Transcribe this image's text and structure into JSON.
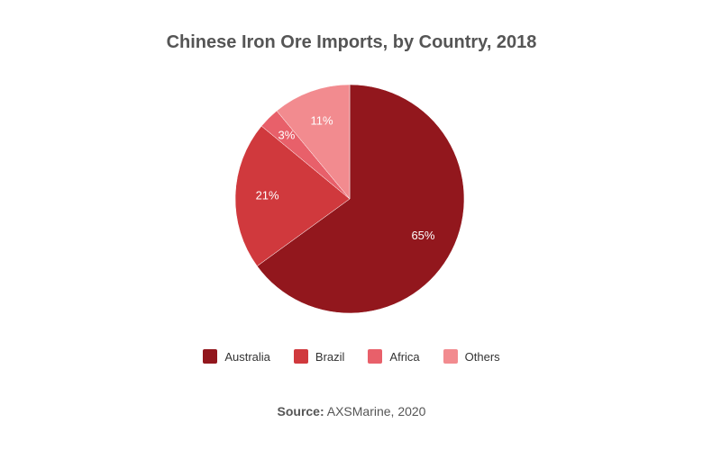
{
  "chart_data": {
    "type": "pie",
    "title": "Chinese Iron Ore Imports, by Country, 2018",
    "legend_position": "bottom",
    "slices": [
      {
        "name": "Australia",
        "value": 65,
        "label": "65%",
        "color": "#92171d"
      },
      {
        "name": "Brazil",
        "value": 21,
        "label": "21%",
        "color": "#d0393d"
      },
      {
        "name": "Africa",
        "value": 3,
        "label": "3%",
        "color": "#e8606a"
      },
      {
        "name": "Others",
        "value": 11,
        "label": "11%",
        "color": "#f28b8f"
      }
    ]
  },
  "source": {
    "label": "Source:",
    "text": " AXSMarine, 2020"
  }
}
